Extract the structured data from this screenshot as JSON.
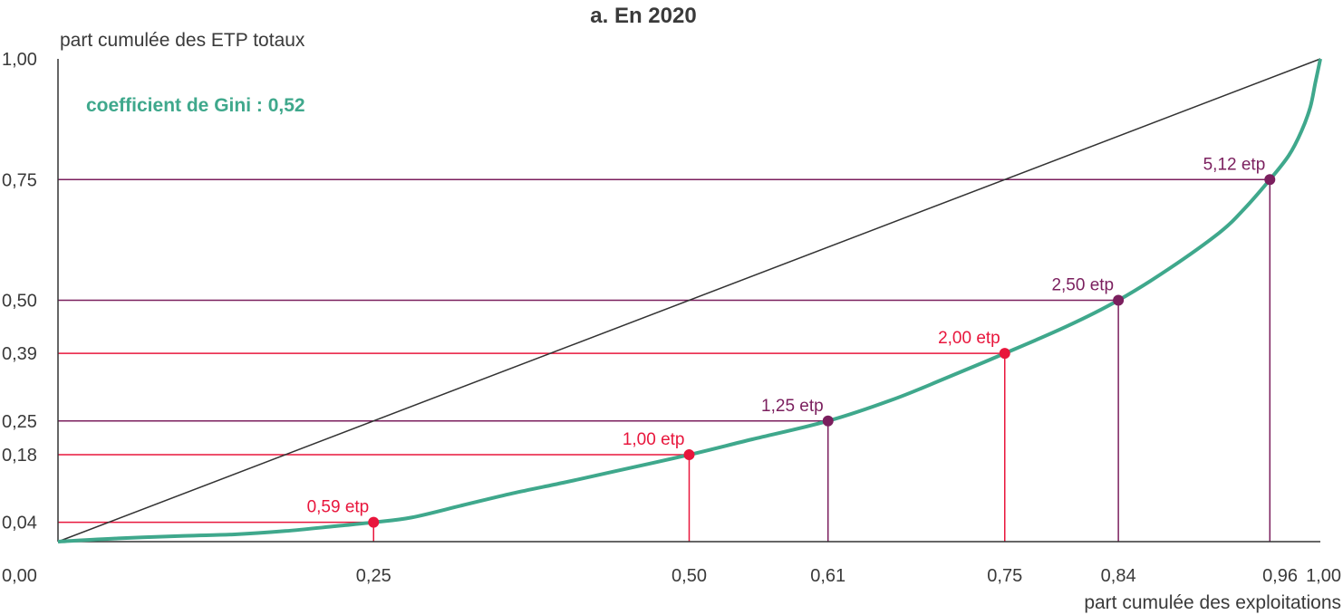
{
  "chart_data": {
    "type": "line",
    "title": "a. En 2020",
    "xlabel": "part cumulée des exploitations",
    "ylabel": "part cumulée des ETP totaux",
    "xlim": [
      0,
      1
    ],
    "ylim": [
      0,
      1
    ],
    "x_ticks": [
      {
        "value": 0.0,
        "label": "0,00"
      },
      {
        "value": 0.25,
        "label": "0,25"
      },
      {
        "value": 0.5,
        "label": "0,50"
      },
      {
        "value": 0.61,
        "label": "0,61"
      },
      {
        "value": 0.75,
        "label": "0,75"
      },
      {
        "value": 0.84,
        "label": "0,84"
      },
      {
        "value": 0.96,
        "label": "0,96"
      },
      {
        "value": 1.0,
        "label": "1,00"
      }
    ],
    "y_ticks": [
      {
        "value": 0.0,
        "label": "0,00"
      },
      {
        "value": 0.04,
        "label": "0,04"
      },
      {
        "value": 0.18,
        "label": "0,18"
      },
      {
        "value": 0.25,
        "label": "0,25"
      },
      {
        "value": 0.39,
        "label": "0,39"
      },
      {
        "value": 0.5,
        "label": "0,50"
      },
      {
        "value": 0.75,
        "label": "0,75"
      },
      {
        "value": 1.0,
        "label": "1,00"
      }
    ],
    "annotation": {
      "text": "coefficient de Gini : 0,52",
      "color": "#3fa88c"
    },
    "equality_line": {
      "x": [
        0,
        1
      ],
      "y": [
        0,
        1
      ],
      "color": "#333333"
    },
    "series": [
      {
        "color": "#3fa88c",
        "x": [
          0,
          0.05,
          0.1,
          0.14,
          0.18,
          0.22,
          0.25,
          0.28,
          0.32,
          0.36,
          0.4,
          0.44,
          0.5,
          0.55,
          0.61,
          0.66,
          0.7,
          0.75,
          0.8,
          0.84,
          0.88,
          0.92,
          0.94,
          0.96,
          0.975,
          0.985,
          0.992,
          0.996,
          1.0
        ],
        "y": [
          0,
          0.007,
          0.012,
          0.015,
          0.022,
          0.032,
          0.04,
          0.05,
          0.075,
          0.1,
          0.122,
          0.145,
          0.18,
          0.212,
          0.25,
          0.293,
          0.335,
          0.39,
          0.447,
          0.5,
          0.565,
          0.64,
          0.69,
          0.75,
          0.8,
          0.85,
          0.9,
          0.95,
          1.0
        ]
      }
    ],
    "markers": [
      {
        "x": 0.25,
        "y": 0.04,
        "label": "0,59 etp",
        "color": "#e8163c"
      },
      {
        "x": 0.5,
        "y": 0.18,
        "label": "1,00 etp",
        "color": "#e8163c"
      },
      {
        "x": 0.61,
        "y": 0.25,
        "label": "1,25 etp",
        "color": "#7b1f5e"
      },
      {
        "x": 0.75,
        "y": 0.39,
        "label": "2,00 etp",
        "color": "#e8163c"
      },
      {
        "x": 0.84,
        "y": 0.5,
        "label": "2,50 etp",
        "color": "#7b1f5e"
      },
      {
        "x": 0.96,
        "y": 0.75,
        "label": "5,12 etp",
        "color": "#7b1f5e"
      }
    ],
    "grid": false,
    "legend": "none"
  }
}
